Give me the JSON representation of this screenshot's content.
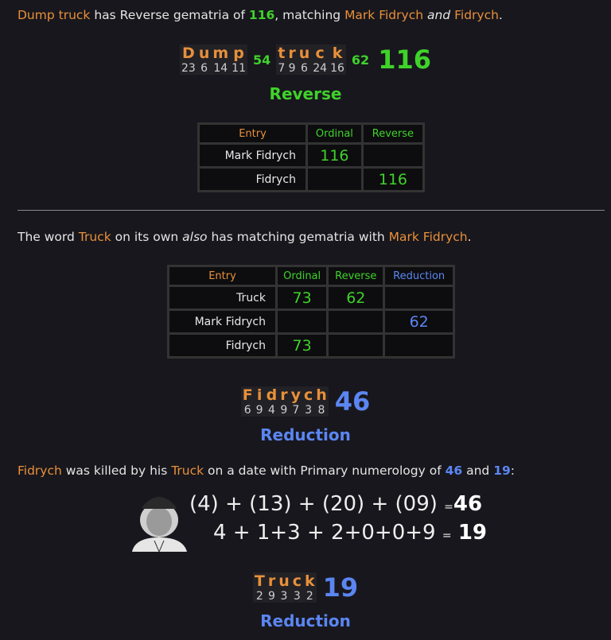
{
  "para1": {
    "w1": "Dump truck",
    "t1": " has Reverse gematria of ",
    "n": "116",
    "t2": ", matching ",
    "w2": "Mark Fidrych",
    "t3": " ",
    "em": "and",
    "t4": " ",
    "w3": "Fidrych",
    "t5": "."
  },
  "cipher1": {
    "word1": [
      [
        "D",
        "23"
      ],
      [
        "u",
        "6"
      ],
      [
        "m",
        "14"
      ],
      [
        "p",
        "11"
      ]
    ],
    "sub1": "54",
    "word2": [
      [
        "t",
        "7"
      ],
      [
        "r",
        "9"
      ],
      [
        "u",
        "6"
      ],
      [
        "c",
        "24"
      ],
      [
        "k",
        "16"
      ]
    ],
    "sub2": "62",
    "total": "116",
    "label": "Reverse"
  },
  "table1": {
    "headers": [
      "Entry",
      "Ordinal",
      "Reverse"
    ],
    "rows": [
      [
        "Mark Fidrych",
        "116",
        ""
      ],
      [
        "Fidrych",
        "",
        "116"
      ]
    ]
  },
  "para2": {
    "t1": "The word ",
    "w1": "Truck",
    "t2": " on its own ",
    "em": "also",
    "t3": " has matching gematria with ",
    "w2": "Mark Fidrych",
    "t4": "."
  },
  "table2": {
    "headers": [
      "Entry",
      "Ordinal",
      "Reverse",
      "Reduction"
    ],
    "rows": [
      [
        "Truck",
        "73",
        "62",
        ""
      ],
      [
        "Mark Fidrych",
        "",
        "",
        "62"
      ],
      [
        "Fidrych",
        "73",
        "",
        ""
      ]
    ]
  },
  "cipher2": {
    "word": [
      [
        "F",
        "6"
      ],
      [
        "i",
        "9"
      ],
      [
        "d",
        "4"
      ],
      [
        "r",
        "9"
      ],
      [
        "y",
        "7"
      ],
      [
        "c",
        "3"
      ],
      [
        "h",
        "8"
      ]
    ],
    "total": "46",
    "label": "Reduction"
  },
  "para3": {
    "w1": "Fidrych",
    "t1": " was killed by his ",
    "w2": "Truck",
    "t2": " on a date with Primary numerology of ",
    "n1": "46",
    "t3": " and ",
    "n2": "19",
    "t4": ":"
  },
  "equations": {
    "line1": "(4) + (13) + (20) + (09)",
    "eq": "=",
    "r1": "46",
    "line2": "4 + 1+3 + 2+0+0+9",
    "r2": "19"
  },
  "cipher3": {
    "word": [
      [
        "T",
        "2"
      ],
      [
        "r",
        "9"
      ],
      [
        "u",
        "3"
      ],
      [
        "c",
        "3"
      ],
      [
        "k",
        "2"
      ]
    ],
    "total": "19",
    "label": "Reduction"
  },
  "colors": {
    "orange": "#e8903a",
    "green": "#3fd22a",
    "blue": "#5b86f2",
    "background": "#18171d"
  }
}
